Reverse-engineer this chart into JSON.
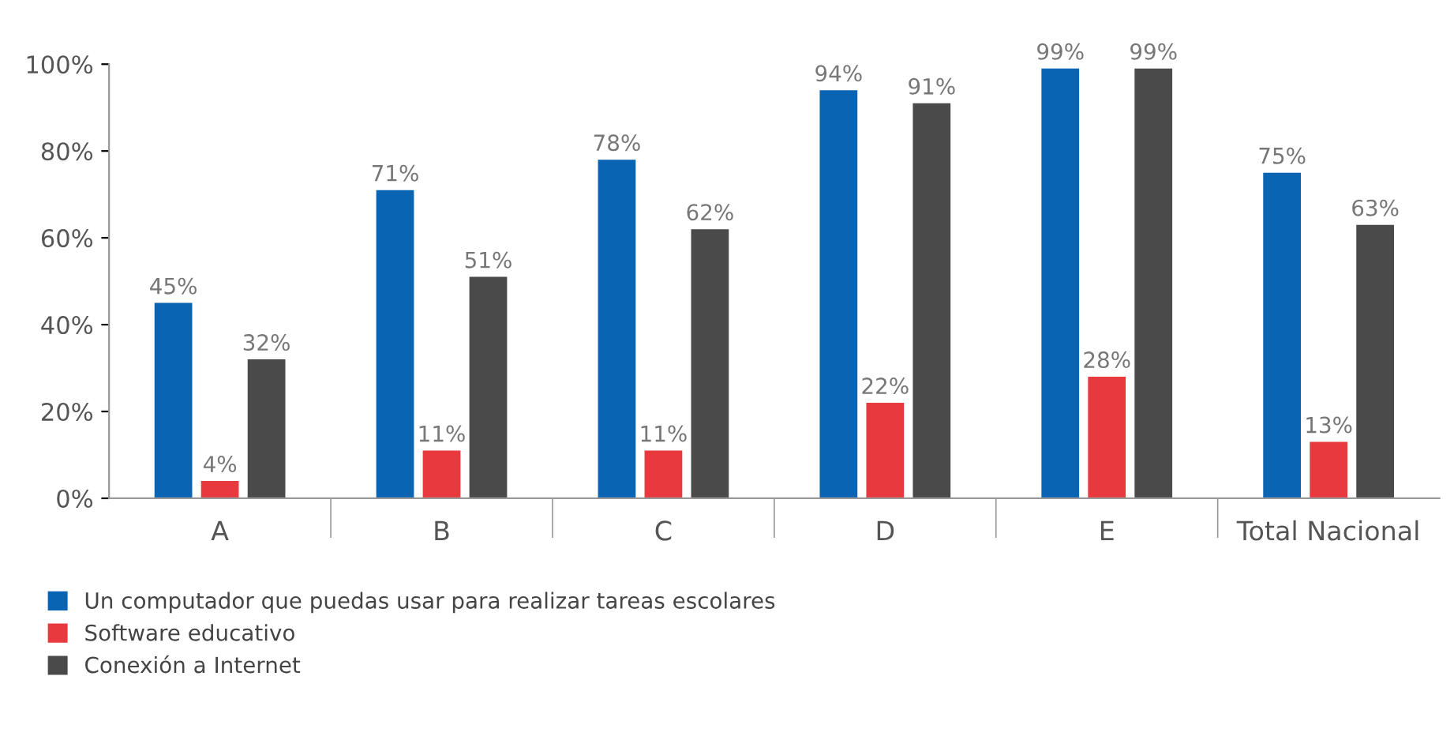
{
  "chart_data": {
    "type": "bar",
    "categories": [
      "A",
      "B",
      "C",
      "D",
      "E",
      "Total Nacional"
    ],
    "series": [
      {
        "name": "Un computador que puedas usar para realizar tareas escolares",
        "color": "#0a64b4",
        "values": [
          45,
          71,
          78,
          94,
          99,
          75
        ],
        "value_labels": [
          "45%",
          "71%",
          "78%",
          "94%",
          "99%",
          "75%"
        ]
      },
      {
        "name": "Software educativo",
        "color": "#e83a3e",
        "values": [
          4,
          11,
          11,
          22,
          28,
          13
        ],
        "value_labels": [
          "4%",
          "11%",
          "11%",
          "22%",
          "28%",
          "13%"
        ]
      },
      {
        "name": "Conexión a Internet",
        "color": "#4a4a4a",
        "values": [
          32,
          51,
          62,
          91,
          99,
          63
        ],
        "value_labels": [
          "32%",
          "51%",
          "62%",
          "91%",
          "99%",
          "63%"
        ]
      }
    ],
    "ylim": [
      0,
      100
    ],
    "yticks": [
      {
        "value": 0,
        "label": "0%"
      },
      {
        "value": 20,
        "label": "20%"
      },
      {
        "value": 40,
        "label": "40%"
      },
      {
        "value": 60,
        "label": "60%"
      },
      {
        "value": 80,
        "label": "80%"
      },
      {
        "value": 100,
        "label": "100%"
      }
    ],
    "grid": false,
    "legend": "bottom left"
  }
}
